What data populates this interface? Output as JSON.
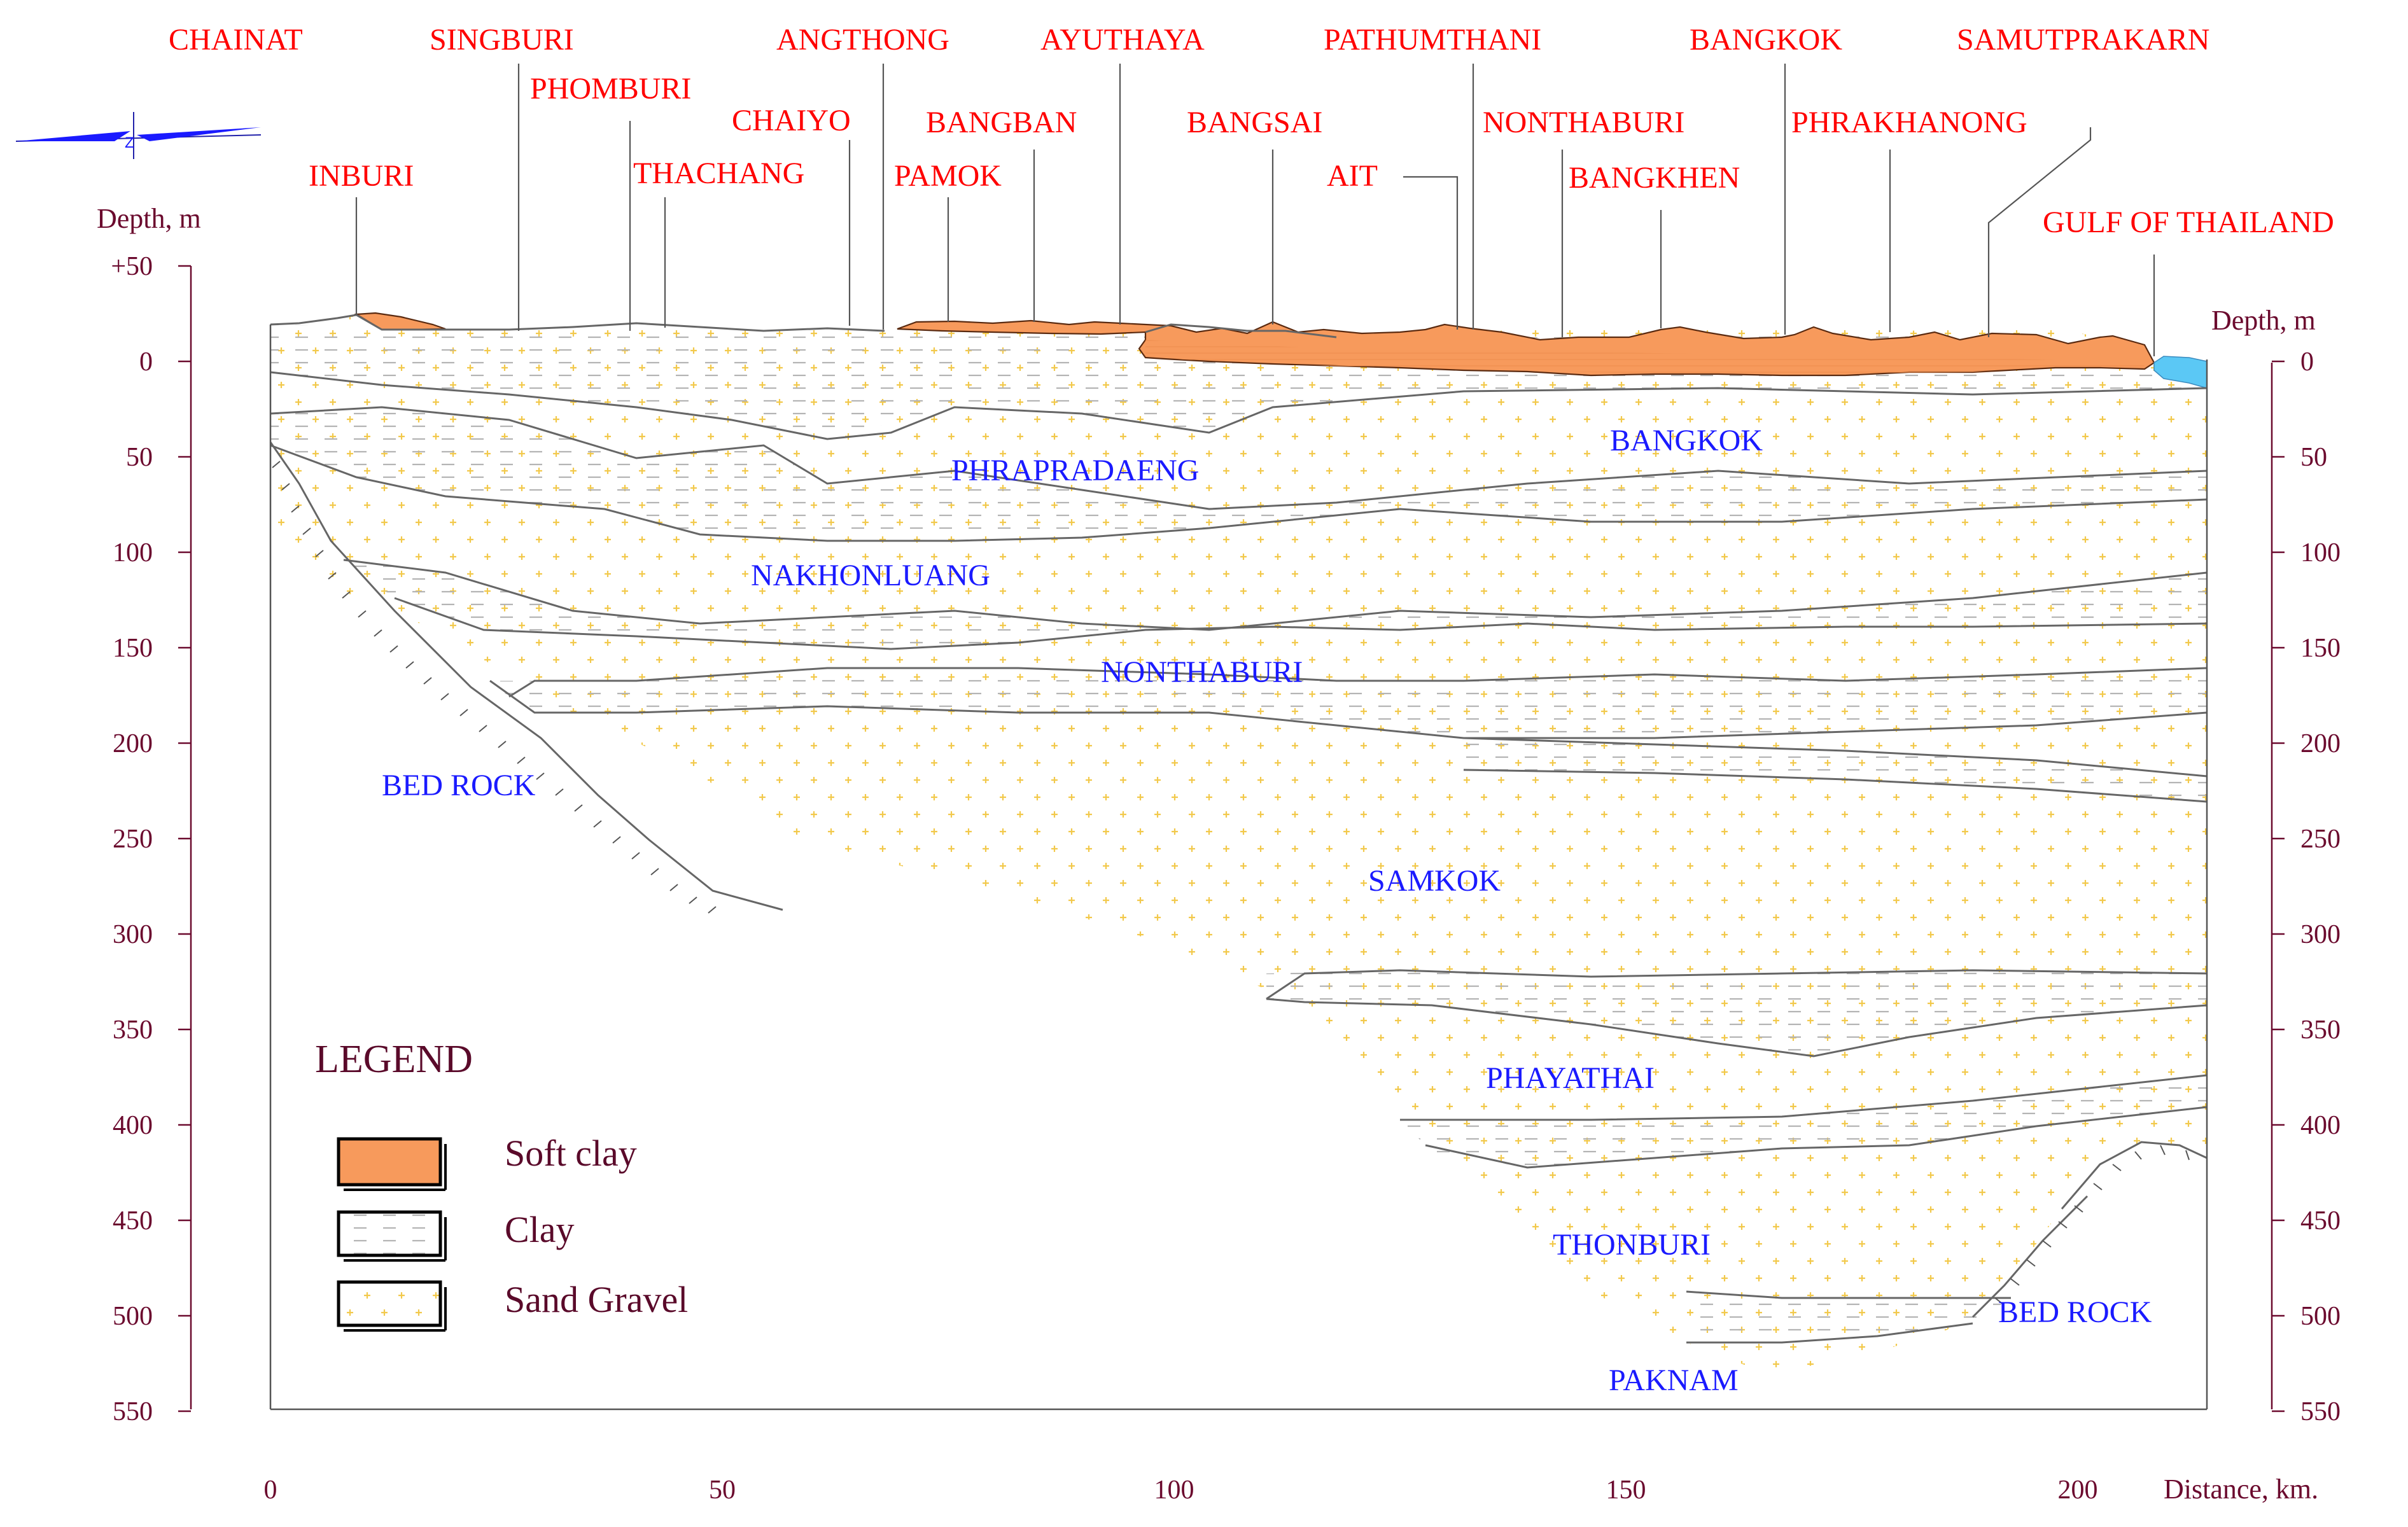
{
  "locations": {
    "chainat": "CHAINAT",
    "singburi": "SINGBURI",
    "phomburi": "PHOMBURI",
    "inburi": "INBURI",
    "thachang": "THACHANG",
    "chaiyo": "CHAIYO",
    "angthong": "ANGTHONG",
    "bangban": "BANGBAN",
    "pamok": "PAMOK",
    "ayuthaya": "AYUTHAYA",
    "bangsai": "BANGSAI",
    "ait": "AIT",
    "pathumthani": "PATHUMTHANI",
    "nonthaburi": "NONTHABURI",
    "bangkhen": "BANGKHEN",
    "bangkok": "BANGKOK",
    "phrakhanong": "PHRAKHANONG",
    "samutprakarn": "SAMUTPRAKARN",
    "gulf": "GULF OF THAILAND"
  },
  "formations": {
    "bangkok": "BANGKOK",
    "phrapradaeng": "PHRAPRADAENG",
    "nakhonluang": "NAKHONLUANG",
    "nonthaburi": "NONTHABURI",
    "samkok": "SAMKOK",
    "phayathai": "PHAYATHAI",
    "thonburi": "THONBURI",
    "paknam": "PAKNAM",
    "bedrock_left": "BED ROCK",
    "bedrock_right": "BED ROCK"
  },
  "axes": {
    "left_title": "Depth,  m",
    "right_title": "Depth,  m",
    "x_title": "Distance,  km.",
    "depth_ticks": [
      "+50",
      "0",
      "50",
      "100",
      "150",
      "200",
      "250",
      "300",
      "350",
      "400",
      "450",
      "500",
      "550"
    ],
    "distance_ticks": [
      "0",
      "50",
      "100",
      "150",
      "200"
    ]
  },
  "legend": {
    "title": "LEGEND",
    "items": [
      "Soft clay",
      "Clay",
      "Sand Gravel"
    ]
  },
  "colors": {
    "soft_clay": "#f79a5c",
    "sand_dot": "#f2c94c",
    "water": "#5bc8f5",
    "location_text": "#ff0000",
    "formation_text": "#1a1aff",
    "axis_text": "#6b0a2e"
  }
}
